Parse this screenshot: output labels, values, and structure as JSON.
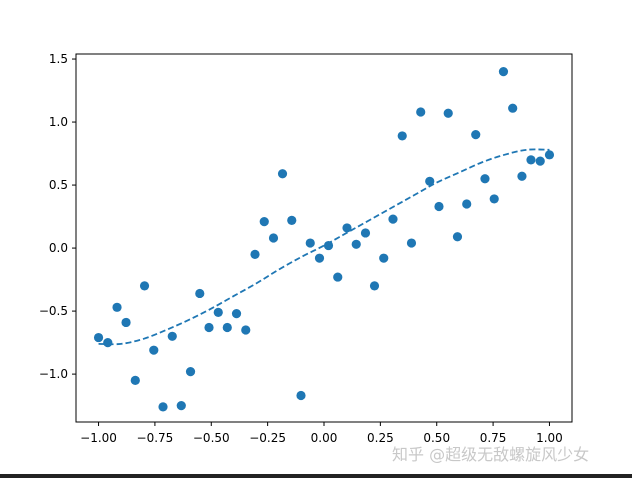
{
  "chart_data": {
    "type": "scatter",
    "xlim": [
      -1.1,
      1.1
    ],
    "ylim": [
      -1.38,
      1.54
    ],
    "xticks": [
      -1.0,
      -0.75,
      -0.5,
      -0.25,
      0.0,
      0.25,
      0.5,
      0.75,
      1.0
    ],
    "xtick_labels": [
      "−1.00",
      "−0.75",
      "−0.50",
      "−0.25",
      "0.00",
      "0.25",
      "0.50",
      "0.75",
      "1.00"
    ],
    "yticks": [
      -1.0,
      -0.5,
      0.0,
      0.5,
      1.0,
      1.5
    ],
    "ytick_labels": [
      "−1.0",
      "−0.5",
      "0.0",
      "0.5",
      "1.0",
      "1.5"
    ],
    "grid": false,
    "series": [
      {
        "kind": "scatter",
        "color": "#1f77b4",
        "x": [
          -1.0,
          -0.959,
          -0.918,
          -0.878,
          -0.837,
          -0.796,
          -0.755,
          -0.714,
          -0.673,
          -0.633,
          -0.592,
          -0.551,
          -0.51,
          -0.469,
          -0.429,
          -0.388,
          -0.347,
          -0.306,
          -0.265,
          -0.224,
          -0.184,
          -0.143,
          -0.102,
          -0.061,
          -0.02,
          0.02,
          0.061,
          0.102,
          0.143,
          0.184,
          0.224,
          0.265,
          0.306,
          0.347,
          0.388,
          0.429,
          0.469,
          0.51,
          0.551,
          0.592,
          0.633,
          0.673,
          0.714,
          0.755,
          0.796,
          0.837,
          0.878,
          0.918,
          0.959,
          1.0
        ],
        "y": [
          -0.71,
          -0.75,
          -0.47,
          -0.59,
          -1.05,
          -0.3,
          -0.81,
          -1.26,
          -0.7,
          -1.25,
          -0.98,
          -0.36,
          -0.63,
          -0.51,
          -0.63,
          -0.52,
          -0.65,
          -0.05,
          0.21,
          0.08,
          0.59,
          0.22,
          -1.17,
          0.04,
          -0.08,
          0.02,
          -0.23,
          0.16,
          0.03,
          0.12,
          -0.3,
          -0.08,
          0.23,
          0.89,
          0.04,
          1.08,
          0.53,
          0.33,
          1.07,
          0.09,
          0.35,
          0.9,
          0.55,
          0.39,
          1.4,
          1.11,
          0.57,
          0.7,
          0.69,
          0.74
        ]
      },
      {
        "kind": "line",
        "style": "dashed",
        "color": "#1f77b4",
        "x": [
          -1.0,
          -0.9,
          -0.8,
          -0.7,
          -0.6,
          -0.5,
          -0.4,
          -0.3,
          -0.2,
          -0.1,
          0.0,
          0.1,
          0.2,
          0.3,
          0.4,
          0.5,
          0.6,
          0.7,
          0.8,
          0.9,
          1.0
        ],
        "y": [
          -0.76,
          -0.76,
          -0.72,
          -0.65,
          -0.57,
          -0.48,
          -0.38,
          -0.28,
          -0.17,
          -0.07,
          0.02,
          0.12,
          0.22,
          0.32,
          0.42,
          0.52,
          0.6,
          0.68,
          0.74,
          0.78,
          0.78
        ]
      }
    ]
  },
  "watermark": "知乎 @超级无敌螺旋风少女"
}
